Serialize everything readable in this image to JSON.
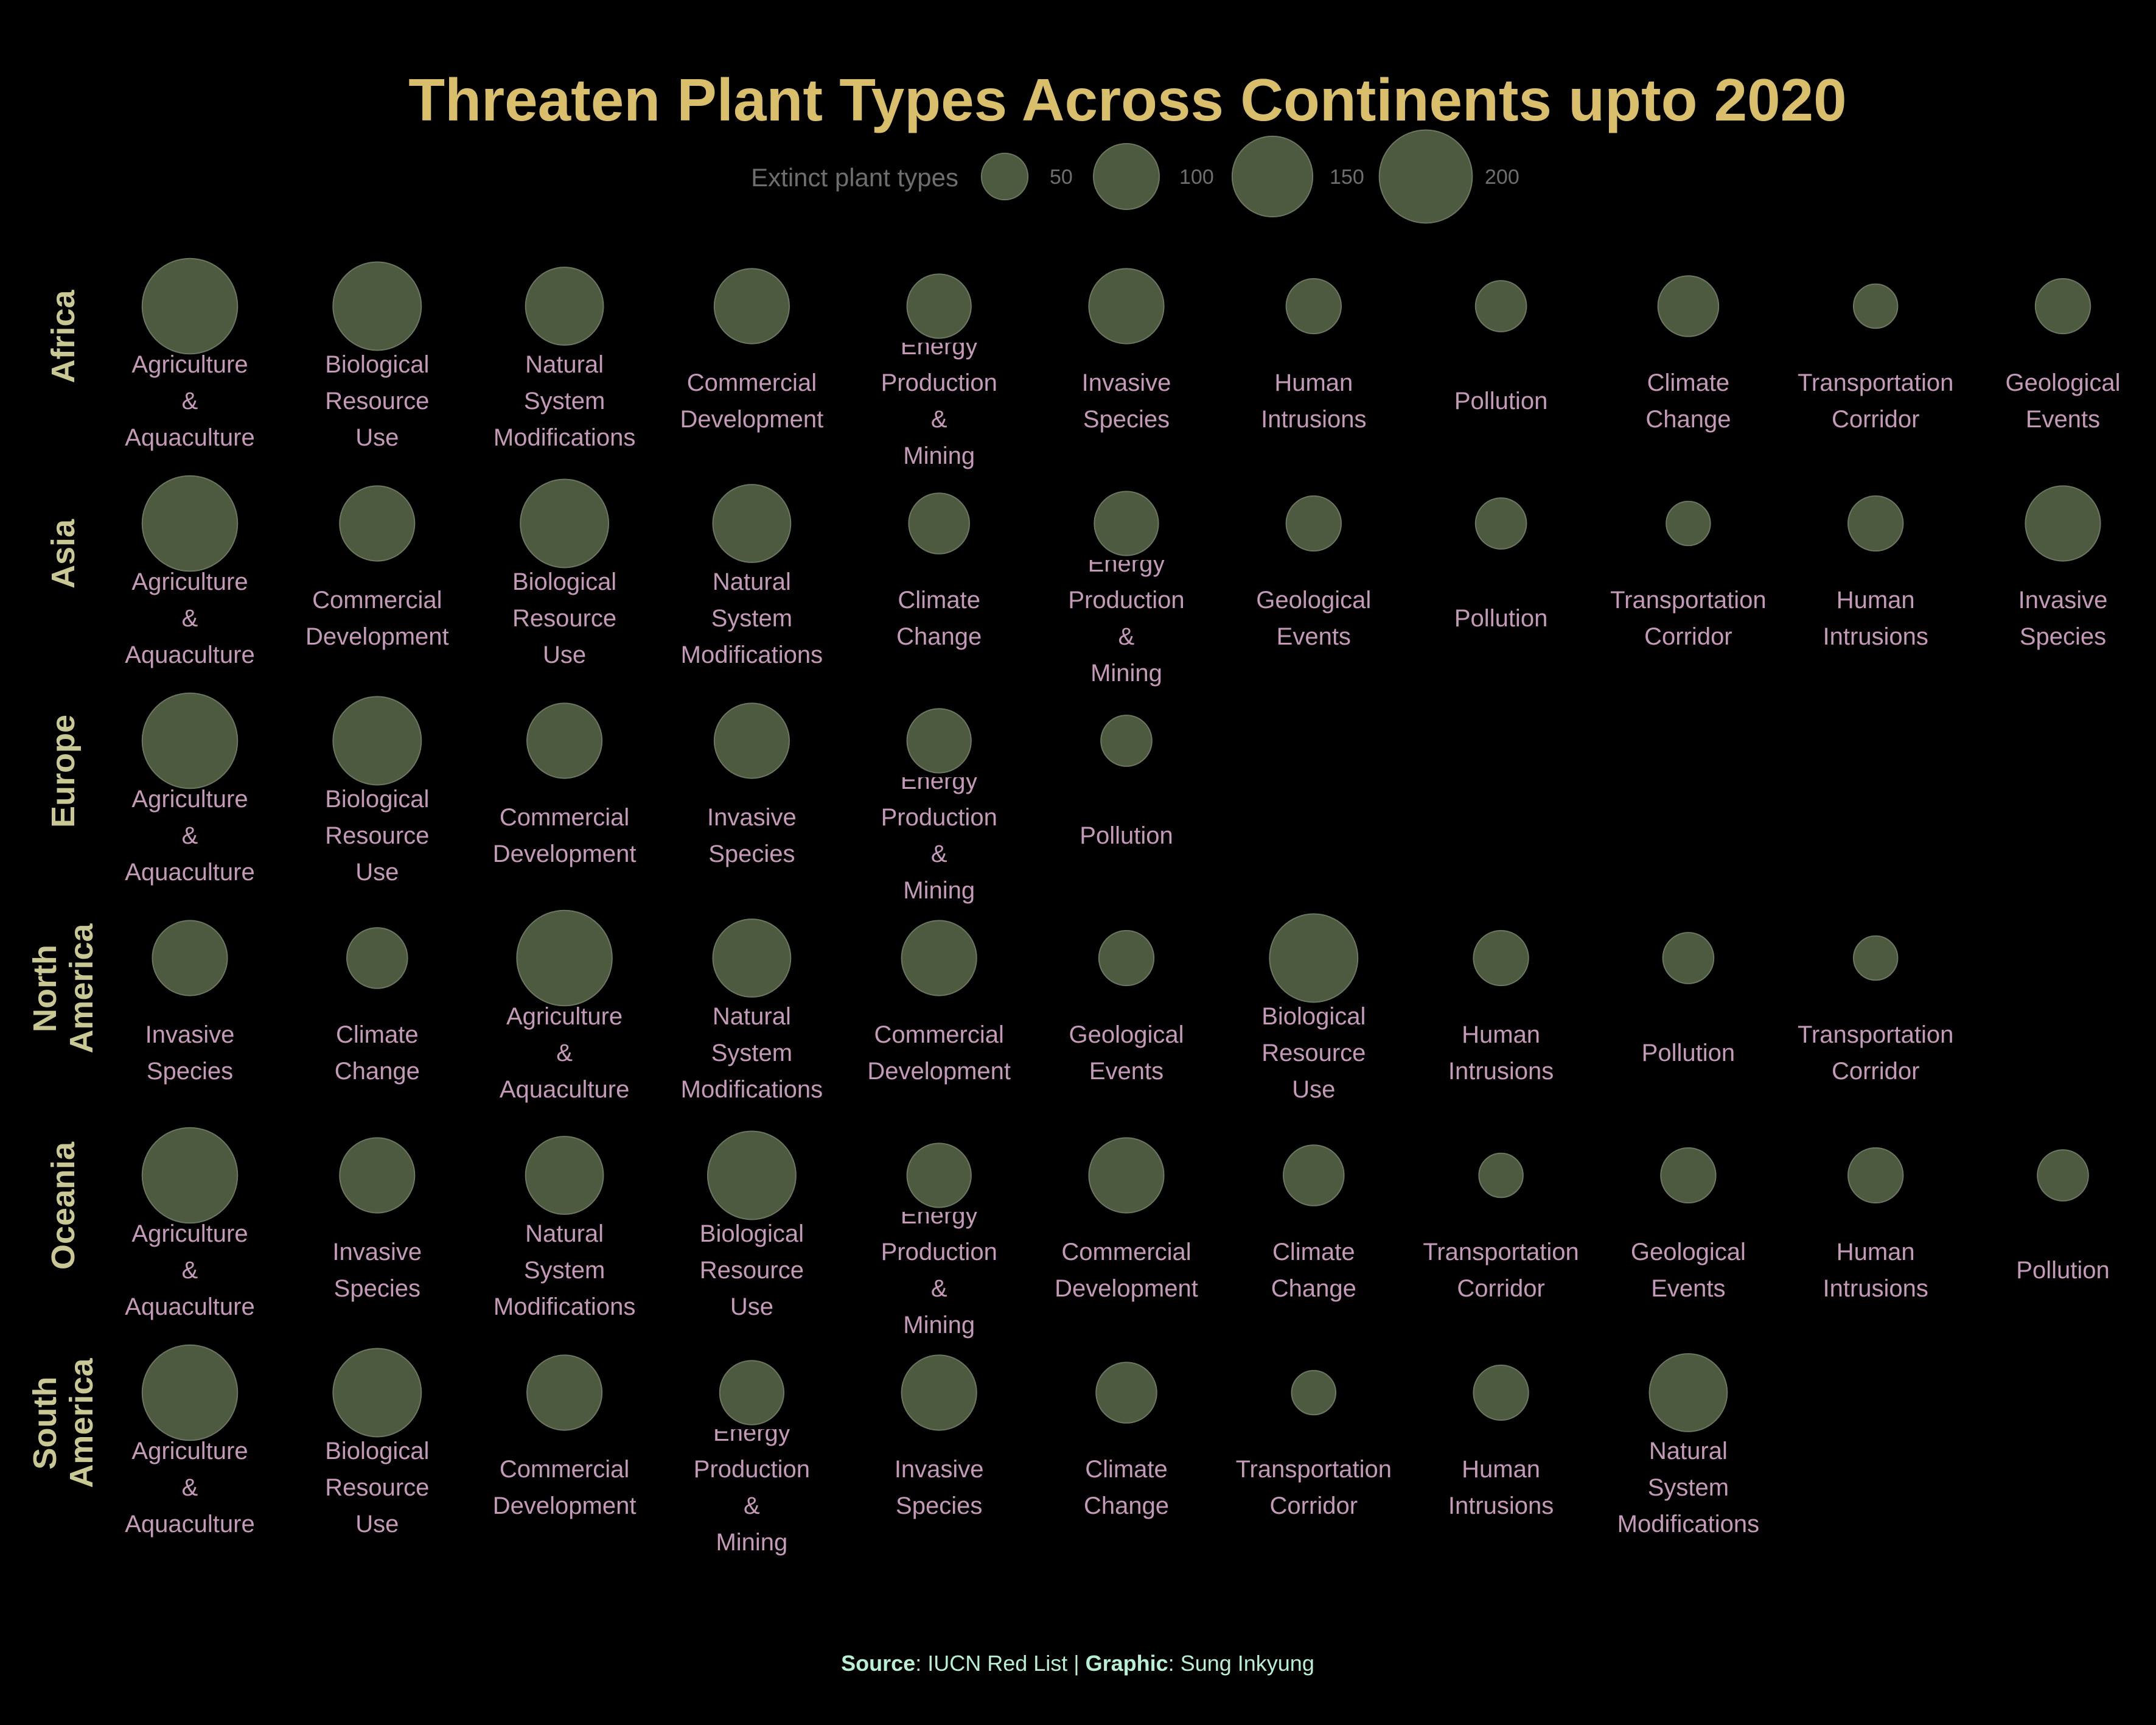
{
  "title": "Threaten Plant Types Across Continents upto 2020",
  "legend": {
    "title": "Extinct plant types",
    "ticks": [
      50,
      100,
      150,
      200
    ]
  },
  "caption": {
    "source_label": "Source",
    "source_text": ": IUCN Red List | ",
    "graphic_label": "Graphic",
    "graphic_text": ": Sung Inkyung"
  },
  "colors": {
    "background": "#000000",
    "title": "#d9be6b",
    "row_label": "#c9c894",
    "category_label": "#c49ab8",
    "bubble": "#4d5a3f",
    "caption": "#b8f0d4"
  },
  "chart_data": {
    "type": "bubble-grid",
    "size_variable": "Extinct plant types",
    "rows": [
      {
        "continent": "Africa",
        "items": [
          {
            "threat": "Agriculture & Aquaculture",
            "value": 210
          },
          {
            "threat": "Biological Resource Use",
            "value": 180
          },
          {
            "threat": "Natural System Modifications",
            "value": 140
          },
          {
            "threat": "Commercial Development",
            "value": 130
          },
          {
            "threat": "Energy Production & Mining",
            "value": 95
          },
          {
            "threat": "Invasive Species",
            "value": 130
          },
          {
            "threat": "Human Intrusions",
            "value": 70
          },
          {
            "threat": "Pollution",
            "value": 60
          },
          {
            "threat": "Climate Change",
            "value": 85
          },
          {
            "threat": "Transportation Corridor",
            "value": 45
          },
          {
            "threat": "Geological Events",
            "value": 70
          }
        ]
      },
      {
        "continent": "Asia",
        "items": [
          {
            "threat": "Agriculture & Aquaculture",
            "value": 210
          },
          {
            "threat": "Commercial Development",
            "value": 130
          },
          {
            "threat": "Biological Resource Use",
            "value": 180
          },
          {
            "threat": "Natural System Modifications",
            "value": 140
          },
          {
            "threat": "Climate Change",
            "value": 85
          },
          {
            "threat": "Energy Production & Mining",
            "value": 95
          },
          {
            "threat": "Geological Events",
            "value": 70
          },
          {
            "threat": "Pollution",
            "value": 60
          },
          {
            "threat": "Transportation Corridor",
            "value": 45
          },
          {
            "threat": "Human Intrusions",
            "value": 70
          },
          {
            "threat": "Invasive Species",
            "value": 130
          }
        ]
      },
      {
        "continent": "Europe",
        "items": [
          {
            "threat": "Agriculture & Aquaculture",
            "value": 210
          },
          {
            "threat": "Biological Resource Use",
            "value": 180
          },
          {
            "threat": "Commercial Development",
            "value": 130
          },
          {
            "threat": "Invasive Species",
            "value": 130
          },
          {
            "threat": "Energy Production & Mining",
            "value": 95
          },
          {
            "threat": "Pollution",
            "value": 60
          }
        ]
      },
      {
        "continent": "North America",
        "items": [
          {
            "threat": "Invasive Species",
            "value": 130
          },
          {
            "threat": "Climate Change",
            "value": 85
          },
          {
            "threat": "Agriculture & Aquaculture",
            "value": 210
          },
          {
            "threat": "Natural System Modifications",
            "value": 140
          },
          {
            "threat": "Commercial Development",
            "value": 130
          },
          {
            "threat": "Geological Events",
            "value": 70
          },
          {
            "threat": "Biological Resource Use",
            "value": 180
          },
          {
            "threat": "Human Intrusions",
            "value": 70
          },
          {
            "threat": "Pollution",
            "value": 60
          },
          {
            "threat": "Transportation Corridor",
            "value": 45
          }
        ]
      },
      {
        "continent": "Oceania",
        "items": [
          {
            "threat": "Agriculture & Aquaculture",
            "value": 210
          },
          {
            "threat": "Invasive Species",
            "value": 130
          },
          {
            "threat": "Natural System Modifications",
            "value": 140
          },
          {
            "threat": "Biological Resource Use",
            "value": 180
          },
          {
            "threat": "Energy Production & Mining",
            "value": 95
          },
          {
            "threat": "Commercial Development",
            "value": 130
          },
          {
            "threat": "Climate Change",
            "value": 85
          },
          {
            "threat": "Transportation Corridor",
            "value": 45
          },
          {
            "threat": "Geological Events",
            "value": 70
          },
          {
            "threat": "Human Intrusions",
            "value": 70
          },
          {
            "threat": "Pollution",
            "value": 60
          }
        ]
      },
      {
        "continent": "South America",
        "items": [
          {
            "threat": "Agriculture & Aquaculture",
            "value": 210
          },
          {
            "threat": "Biological Resource Use",
            "value": 180
          },
          {
            "threat": "Commercial Development",
            "value": 130
          },
          {
            "threat": "Energy Production & Mining",
            "value": 95
          },
          {
            "threat": "Invasive Species",
            "value": 130
          },
          {
            "threat": "Climate Change",
            "value": 85
          },
          {
            "threat": "Transportation Corridor",
            "value": 45
          },
          {
            "threat": "Human Intrusions",
            "value": 70
          },
          {
            "threat": "Natural System Modifications",
            "value": 140
          }
        ]
      }
    ]
  }
}
